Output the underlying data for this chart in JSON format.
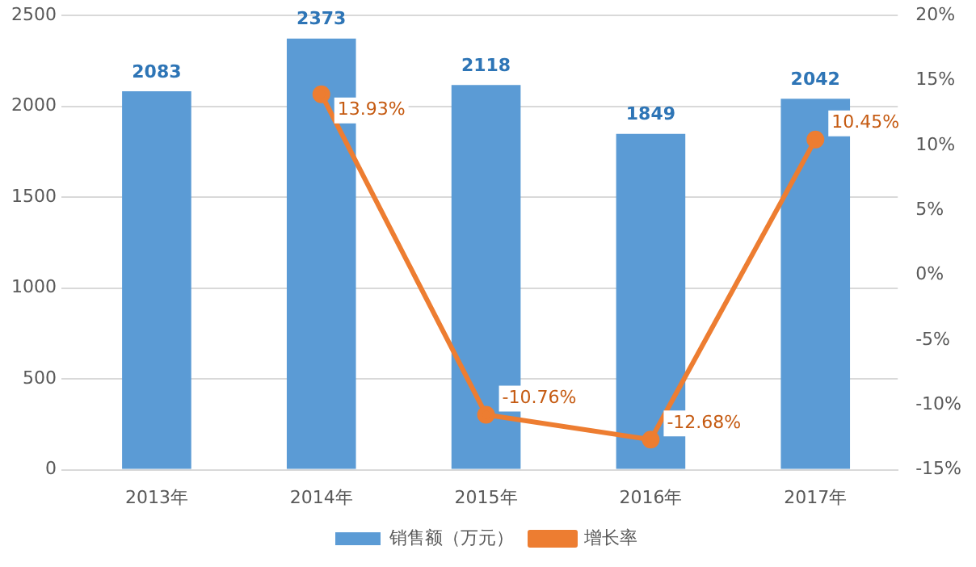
{
  "chart_data": {
    "type": "bar",
    "categories": [
      "2013年",
      "2014年",
      "2015年",
      "2016年",
      "2017年"
    ],
    "series": [
      {
        "name": "销售额（万元）",
        "color": "#5b9bd5",
        "values": [
          2083,
          2373,
          2118,
          1849,
          2042
        ],
        "value_labels": [
          "2083",
          "2373",
          "2118",
          "1849",
          "2042"
        ]
      },
      {
        "name": "增长率",
        "type": "line",
        "axis": "y2",
        "color": "#ed7d31",
        "values": [
          null,
          13.93,
          -10.76,
          -12.68,
          10.45
        ],
        "value_labels": [
          null,
          "13.93%",
          "-10.76%",
          "-12.68%",
          "10.45%"
        ]
      }
    ],
    "ylim": [
      0,
      2500
    ],
    "yticks": [
      0,
      500,
      1000,
      1500,
      2000,
      2500
    ],
    "y2lim": [
      -15,
      20
    ],
    "y2ticks": [
      {
        "value": -15,
        "label": "-15%"
      },
      {
        "value": -10,
        "label": "-10%"
      },
      {
        "value": -5,
        "label": "-5%"
      },
      {
        "value": 0,
        "label": "0%"
      },
      {
        "value": 5,
        "label": "5%"
      },
      {
        "value": 10,
        "label": "10%"
      },
      {
        "value": 15,
        "label": "15%"
      },
      {
        "value": 20,
        "label": "20%"
      }
    ],
    "grid": "y",
    "legend": "bottom",
    "marker": "circle",
    "line_style": "solid"
  }
}
